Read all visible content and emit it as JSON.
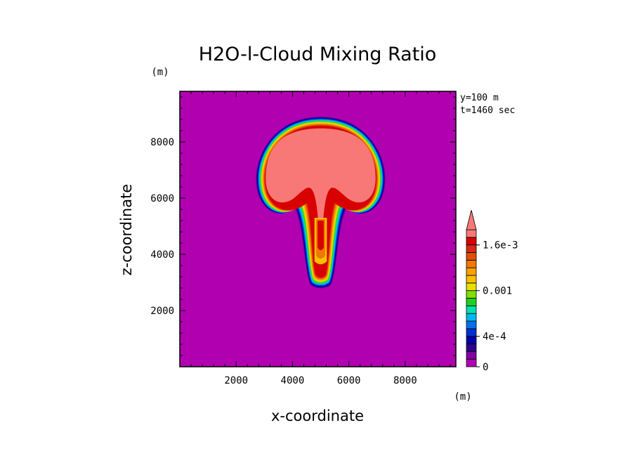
{
  "chart_data": {
    "type": "heatmap",
    "title": "H2O-l-Cloud Mixing Ratio",
    "xlabel": "x-coordinate",
    "ylabel": "z-coordinate",
    "x_unit": "(m)",
    "y_unit": "(m)",
    "xlim": [
      0,
      9800
    ],
    "ylim": [
      0,
      9800
    ],
    "x_ticks": [
      2000,
      4000,
      6000,
      8000
    ],
    "y_ticks": [
      2000,
      4000,
      6000,
      8000
    ],
    "x_tick_labels": [
      "2000",
      "4000",
      "6000",
      "8000"
    ],
    "y_tick_labels": [
      "2000",
      "4000",
      "6000",
      "8000"
    ],
    "info": [
      "y=100 m",
      "t=1460 sec"
    ],
    "colorbar": {
      "levels": [
        0,
        0.0001,
        0.0002,
        0.0003,
        0.0004,
        0.0005,
        0.0006,
        0.0007,
        0.0008,
        0.0009,
        0.001,
        0.0011,
        0.0012,
        0.0013,
        0.0014,
        0.0015,
        0.0016,
        0.0017,
        0.0018,
        0.0019
      ],
      "colors": [
        "#b000b0",
        "#8000a0",
        "#300090",
        "#0000a8",
        "#0030d0",
        "#0070f0",
        "#00b8f0",
        "#00e0b0",
        "#20d020",
        "#80e000",
        "#e8e000",
        "#f8c000",
        "#f8a000",
        "#f07800",
        "#e05000",
        "#d82818",
        "#d80000",
        "#f87878"
      ],
      "tick_values": [
        0,
        0.0004,
        0.001,
        0.0016
      ],
      "tick_labels": [
        "0",
        "4e-4",
        "0.001",
        "1.6e-3"
      ],
      "extend": "max",
      "over_color": "#f87878"
    },
    "field": {
      "description_values": "liquid cloud water mixing ratio; cap max > 1.9e-3 over center",
      "background_value": 0,
      "cap_center": [
        5000,
        6700
      ],
      "cap_top": 8900,
      "cap_bottom": 5000,
      "cap_half_width": 2300,
      "stem_center_x": 5000,
      "stem_bottom": 2750,
      "stem_half_width": 600
    }
  }
}
